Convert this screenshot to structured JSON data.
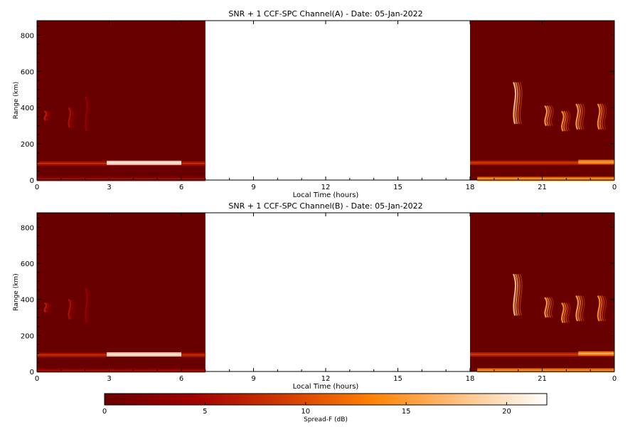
{
  "chart_data": [
    {
      "type": "heatmap",
      "title": "SNR + 1 CCF-SPC Channel(A) - Date: 05-Jan-2022",
      "xlabel": "Local Time (hours)",
      "ylabel": "Range (km)",
      "x_ticks": [
        "0",
        "3",
        "6",
        "9",
        "12",
        "15",
        "18",
        "21",
        "0"
      ],
      "y_ticks": [
        "0",
        "200",
        "400",
        "600",
        "800"
      ],
      "xlim": [
        0,
        24
      ],
      "ylim": [
        0,
        880
      ],
      "data_gaps": [
        [
          7,
          18
        ]
      ],
      "background_value_db": 0,
      "features": [
        {
          "kind": "band",
          "x0": 0.0,
          "x1": 7.0,
          "y": 92,
          "value_db": 6
        },
        {
          "kind": "band",
          "x0": 2.9,
          "x1": 6.0,
          "y": 95,
          "value_db": 20
        },
        {
          "kind": "band",
          "x0": 18.0,
          "x1": 24.0,
          "y": 95,
          "value_db": 7
        },
        {
          "kind": "band",
          "x0": 22.5,
          "x1": 24.0,
          "y": 100,
          "value_db": 14
        },
        {
          "kind": "band",
          "x0": 0.0,
          "x1": 7.0,
          "y": 6,
          "value_db": 3
        },
        {
          "kind": "band",
          "x0": 18.3,
          "x1": 24.0,
          "y": 6,
          "value_db": 13
        },
        {
          "kind": "plume",
          "x": 0.5,
          "y0": 330,
          "y1": 380,
          "value_db": 7
        },
        {
          "kind": "plume",
          "x": 1.5,
          "y0": 290,
          "y1": 400,
          "value_db": 6
        },
        {
          "kind": "plume",
          "x": 2.2,
          "y0": 270,
          "y1": 460,
          "value_db": 4
        },
        {
          "kind": "plume",
          "x": 20.0,
          "y0": 310,
          "y1": 540,
          "value_db": 18
        },
        {
          "kind": "plume",
          "x": 21.3,
          "y0": 300,
          "y1": 410,
          "value_db": 16
        },
        {
          "kind": "plume",
          "x": 22.0,
          "y0": 270,
          "y1": 380,
          "value_db": 15
        },
        {
          "kind": "plume",
          "x": 22.6,
          "y0": 280,
          "y1": 420,
          "value_db": 16
        },
        {
          "kind": "plume",
          "x": 23.5,
          "y0": 280,
          "y1": 420,
          "value_db": 15
        }
      ]
    },
    {
      "type": "heatmap",
      "title": "SNR + 1 CCF-SPC Channel(B) - Date: 05-Jan-2022",
      "xlabel": "Local Time (hours)",
      "ylabel": "Range (km)",
      "x_ticks": [
        "0",
        "3",
        "6",
        "9",
        "12",
        "15",
        "18",
        "21",
        "0"
      ],
      "y_ticks": [
        "0",
        "200",
        "400",
        "600",
        "800"
      ],
      "xlim": [
        0,
        24
      ],
      "ylim": [
        0,
        880
      ],
      "data_gaps": [
        [
          7,
          18
        ]
      ],
      "background_value_db": 0,
      "features": [
        {
          "kind": "band",
          "x0": 0.0,
          "x1": 7.0,
          "y": 92,
          "value_db": 6
        },
        {
          "kind": "band",
          "x0": 2.9,
          "x1": 6.0,
          "y": 95,
          "value_db": 20
        },
        {
          "kind": "band",
          "x0": 18.0,
          "x1": 24.0,
          "y": 95,
          "value_db": 7
        },
        {
          "kind": "band",
          "x0": 22.5,
          "x1": 24.0,
          "y": 100,
          "value_db": 14
        },
        {
          "kind": "band",
          "x0": 0.0,
          "x1": 7.0,
          "y": 6,
          "value_db": 3
        },
        {
          "kind": "band",
          "x0": 18.3,
          "x1": 24.0,
          "y": 6,
          "value_db": 13
        },
        {
          "kind": "plume",
          "x": 0.5,
          "y0": 330,
          "y1": 380,
          "value_db": 7
        },
        {
          "kind": "plume",
          "x": 1.5,
          "y0": 290,
          "y1": 400,
          "value_db": 6
        },
        {
          "kind": "plume",
          "x": 2.2,
          "y0": 270,
          "y1": 460,
          "value_db": 4
        },
        {
          "kind": "plume",
          "x": 20.0,
          "y0": 310,
          "y1": 540,
          "value_db": 18
        },
        {
          "kind": "plume",
          "x": 21.3,
          "y0": 300,
          "y1": 410,
          "value_db": 16
        },
        {
          "kind": "plume",
          "x": 22.0,
          "y0": 270,
          "y1": 380,
          "value_db": 15
        },
        {
          "kind": "plume",
          "x": 22.6,
          "y0": 280,
          "y1": 420,
          "value_db": 16
        },
        {
          "kind": "plume",
          "x": 23.5,
          "y0": 280,
          "y1": 420,
          "value_db": 15
        }
      ]
    }
  ],
  "colorbar": {
    "label": "Spread-F (dB)",
    "ticks": [
      "0",
      "5",
      "10",
      "15",
      "20"
    ],
    "range": [
      0,
      22
    ],
    "colors": [
      "#690000",
      "#a00000",
      "#d03800",
      "#ff8000",
      "#ffc080",
      "#ffffff"
    ]
  }
}
